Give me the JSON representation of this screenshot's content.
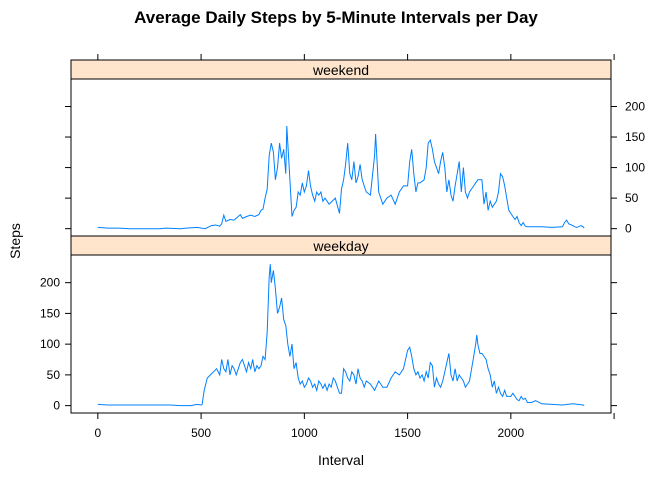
{
  "chart_data": {
    "type": "line",
    "title": "Average Daily Steps by 5-Minute Intervals per Day",
    "xlabel": "Interval",
    "ylabel": "Steps",
    "xlim": [
      -130,
      2485
    ],
    "ylim": [
      -12,
      245
    ],
    "xticks": [
      0,
      500,
      1000,
      1500,
      2000
    ],
    "yticks": [
      0,
      50,
      100,
      150,
      200
    ],
    "grid": false,
    "legend": "none",
    "colors": {
      "line": "#0080ff",
      "strip": "#ffe5cc",
      "frame": "#000000"
    },
    "panels": [
      {
        "name": "weekend",
        "points": [
          [
            0,
            2
          ],
          [
            50,
            1
          ],
          [
            100,
            1
          ],
          [
            150,
            0
          ],
          [
            200,
            0
          ],
          [
            300,
            0
          ],
          [
            330,
            1
          ],
          [
            400,
            0
          ],
          [
            430,
            1
          ],
          [
            480,
            2
          ],
          [
            520,
            0
          ],
          [
            550,
            5
          ],
          [
            570,
            6
          ],
          [
            590,
            4
          ],
          [
            600,
            8
          ],
          [
            610,
            22
          ],
          [
            620,
            12
          ],
          [
            640,
            15
          ],
          [
            660,
            14
          ],
          [
            690,
            23
          ],
          [
            700,
            17
          ],
          [
            720,
            20
          ],
          [
            740,
            22
          ],
          [
            760,
            20
          ],
          [
            780,
            23
          ],
          [
            790,
            30
          ],
          [
            800,
            32
          ],
          [
            810,
            50
          ],
          [
            820,
            65
          ],
          [
            830,
            120
          ],
          [
            840,
            140
          ],
          [
            850,
            125
          ],
          [
            860,
            80
          ],
          [
            870,
            100
          ],
          [
            880,
            140
          ],
          [
            890,
            115
          ],
          [
            900,
            130
          ],
          [
            910,
            90
          ],
          [
            915,
            168
          ],
          [
            920,
            140
          ],
          [
            930,
            80
          ],
          [
            940,
            20
          ],
          [
            950,
            30
          ],
          [
            960,
            35
          ],
          [
            970,
            60
          ],
          [
            980,
            55
          ],
          [
            990,
            75
          ],
          [
            1000,
            60
          ],
          [
            1010,
            70
          ],
          [
            1020,
            95
          ],
          [
            1030,
            70
          ],
          [
            1040,
            55
          ],
          [
            1050,
            45
          ],
          [
            1060,
            60
          ],
          [
            1070,
            55
          ],
          [
            1080,
            60
          ],
          [
            1090,
            45
          ],
          [
            1100,
            50
          ],
          [
            1120,
            40
          ],
          [
            1150,
            50
          ],
          [
            1170,
            25
          ],
          [
            1180,
            65
          ],
          [
            1190,
            80
          ],
          [
            1200,
            105
          ],
          [
            1210,
            140
          ],
          [
            1220,
            90
          ],
          [
            1230,
            80
          ],
          [
            1240,
            110
          ],
          [
            1250,
            75
          ],
          [
            1260,
            85
          ],
          [
            1270,
            105
          ],
          [
            1280,
            80
          ],
          [
            1290,
            70
          ],
          [
            1300,
            60
          ],
          [
            1320,
            55
          ],
          [
            1340,
            120
          ],
          [
            1345,
            155
          ],
          [
            1360,
            60
          ],
          [
            1380,
            40
          ],
          [
            1400,
            50
          ],
          [
            1420,
            55
          ],
          [
            1440,
            40
          ],
          [
            1460,
            60
          ],
          [
            1480,
            70
          ],
          [
            1500,
            70
          ],
          [
            1510,
            110
          ],
          [
            1520,
            130
          ],
          [
            1530,
            90
          ],
          [
            1540,
            60
          ],
          [
            1550,
            75
          ],
          [
            1560,
            75
          ],
          [
            1580,
            80
          ],
          [
            1590,
            100
          ],
          [
            1600,
            140
          ],
          [
            1610,
            145
          ],
          [
            1620,
            130
          ],
          [
            1630,
            110
          ],
          [
            1640,
            100
          ],
          [
            1650,
            90
          ],
          [
            1660,
            110
          ],
          [
            1670,
            125
          ],
          [
            1680,
            100
          ],
          [
            1690,
            60
          ],
          [
            1700,
            80
          ],
          [
            1710,
            55
          ],
          [
            1720,
            45
          ],
          [
            1730,
            70
          ],
          [
            1740,
            90
          ],
          [
            1750,
            110
          ],
          [
            1760,
            60
          ],
          [
            1770,
            100
          ],
          [
            1780,
            60
          ],
          [
            1790,
            50
          ],
          [
            1800,
            60
          ],
          [
            1820,
            70
          ],
          [
            1840,
            80
          ],
          [
            1860,
            80
          ],
          [
            1870,
            40
          ],
          [
            1880,
            60
          ],
          [
            1890,
            30
          ],
          [
            1900,
            45
          ],
          [
            1910,
            35
          ],
          [
            1920,
            40
          ],
          [
            1930,
            45
          ],
          [
            1940,
            60
          ],
          [
            1950,
            90
          ],
          [
            1960,
            85
          ],
          [
            1970,
            70
          ],
          [
            1980,
            50
          ],
          [
            1990,
            30
          ],
          [
            2000,
            25
          ],
          [
            2010,
            20
          ],
          [
            2020,
            15
          ],
          [
            2030,
            20
          ],
          [
            2040,
            10
          ],
          [
            2050,
            5
          ],
          [
            2060,
            10
          ],
          [
            2070,
            4
          ],
          [
            2080,
            3
          ],
          [
            2100,
            3
          ],
          [
            2150,
            3
          ],
          [
            2200,
            2
          ],
          [
            2250,
            3
          ],
          [
            2260,
            10
          ],
          [
            2270,
            14
          ],
          [
            2280,
            8
          ],
          [
            2300,
            5
          ],
          [
            2310,
            3
          ],
          [
            2320,
            2
          ],
          [
            2340,
            5
          ],
          [
            2350,
            3
          ],
          [
            2355,
            1
          ]
        ]
      },
      {
        "name": "weekday",
        "points": [
          [
            0,
            2
          ],
          [
            50,
            1
          ],
          [
            100,
            1
          ],
          [
            150,
            1
          ],
          [
            200,
            1
          ],
          [
            300,
            1
          ],
          [
            350,
            1
          ],
          [
            400,
            0
          ],
          [
            450,
            0
          ],
          [
            480,
            2
          ],
          [
            500,
            1
          ],
          [
            505,
            2
          ],
          [
            515,
            25
          ],
          [
            530,
            45
          ],
          [
            545,
            50
          ],
          [
            560,
            55
          ],
          [
            575,
            60
          ],
          [
            590,
            50
          ],
          [
            600,
            75
          ],
          [
            610,
            60
          ],
          [
            620,
            55
          ],
          [
            630,
            75
          ],
          [
            640,
            50
          ],
          [
            650,
            65
          ],
          [
            660,
            60
          ],
          [
            670,
            50
          ],
          [
            680,
            60
          ],
          [
            690,
            70
          ],
          [
            700,
            75
          ],
          [
            710,
            65
          ],
          [
            720,
            55
          ],
          [
            730,
            70
          ],
          [
            740,
            60
          ],
          [
            750,
            75
          ],
          [
            760,
            55
          ],
          [
            770,
            65
          ],
          [
            780,
            60
          ],
          [
            790,
            65
          ],
          [
            800,
            80
          ],
          [
            810,
            75
          ],
          [
            820,
            120
          ],
          [
            830,
            210
          ],
          [
            835,
            230
          ],
          [
            840,
            200
          ],
          [
            850,
            220
          ],
          [
            860,
            190
          ],
          [
            870,
            150
          ],
          [
            880,
            160
          ],
          [
            890,
            175
          ],
          [
            900,
            140
          ],
          [
            910,
            130
          ],
          [
            920,
            100
          ],
          [
            930,
            80
          ],
          [
            940,
            100
          ],
          [
            950,
            60
          ],
          [
            960,
            70
          ],
          [
            970,
            45
          ],
          [
            980,
            35
          ],
          [
            990,
            40
          ],
          [
            1000,
            30
          ],
          [
            1010,
            35
          ],
          [
            1020,
            45
          ],
          [
            1030,
            40
          ],
          [
            1040,
            30
          ],
          [
            1050,
            35
          ],
          [
            1060,
            25
          ],
          [
            1070,
            40
          ],
          [
            1080,
            35
          ],
          [
            1090,
            28
          ],
          [
            1100,
            35
          ],
          [
            1110,
            25
          ],
          [
            1120,
            35
          ],
          [
            1130,
            30
          ],
          [
            1140,
            45
          ],
          [
            1150,
            40
          ],
          [
            1160,
            30
          ],
          [
            1170,
            20
          ],
          [
            1180,
            20
          ],
          [
            1190,
            60
          ],
          [
            1200,
            55
          ],
          [
            1210,
            45
          ],
          [
            1220,
            40
          ],
          [
            1230,
            55
          ],
          [
            1240,
            50
          ],
          [
            1250,
            35
          ],
          [
            1260,
            60
          ],
          [
            1270,
            45
          ],
          [
            1280,
            40
          ],
          [
            1290,
            30
          ],
          [
            1300,
            40
          ],
          [
            1320,
            35
          ],
          [
            1340,
            25
          ],
          [
            1360,
            40
          ],
          [
            1380,
            30
          ],
          [
            1400,
            30
          ],
          [
            1420,
            45
          ],
          [
            1440,
            55
          ],
          [
            1460,
            50
          ],
          [
            1480,
            60
          ],
          [
            1500,
            90
          ],
          [
            1510,
            95
          ],
          [
            1520,
            80
          ],
          [
            1530,
            60
          ],
          [
            1540,
            50
          ],
          [
            1550,
            55
          ],
          [
            1560,
            45
          ],
          [
            1570,
            50
          ],
          [
            1580,
            40
          ],
          [
            1590,
            55
          ],
          [
            1600,
            45
          ],
          [
            1610,
            70
          ],
          [
            1620,
            65
          ],
          [
            1630,
            30
          ],
          [
            1640,
            45
          ],
          [
            1650,
            35
          ],
          [
            1660,
            30
          ],
          [
            1670,
            40
          ],
          [
            1680,
            55
          ],
          [
            1690,
            70
          ],
          [
            1700,
            85
          ],
          [
            1710,
            50
          ],
          [
            1720,
            40
          ],
          [
            1730,
            60
          ],
          [
            1740,
            40
          ],
          [
            1750,
            50
          ],
          [
            1760,
            45
          ],
          [
            1770,
            40
          ],
          [
            1780,
            30
          ],
          [
            1790,
            35
          ],
          [
            1800,
            40
          ],
          [
            1810,
            60
          ],
          [
            1820,
            80
          ],
          [
            1830,
            100
          ],
          [
            1835,
            115
          ],
          [
            1840,
            100
          ],
          [
            1850,
            85
          ],
          [
            1860,
            85
          ],
          [
            1870,
            80
          ],
          [
            1880,
            75
          ],
          [
            1890,
            60
          ],
          [
            1900,
            50
          ],
          [
            1910,
            30
          ],
          [
            1920,
            40
          ],
          [
            1930,
            20
          ],
          [
            1940,
            30
          ],
          [
            1950,
            20
          ],
          [
            1960,
            15
          ],
          [
            1970,
            25
          ],
          [
            1980,
            15
          ],
          [
            2000,
            15
          ],
          [
            2010,
            20
          ],
          [
            2020,
            15
          ],
          [
            2030,
            10
          ],
          [
            2040,
            8
          ],
          [
            2050,
            15
          ],
          [
            2060,
            10
          ],
          [
            2070,
            12
          ],
          [
            2080,
            5
          ],
          [
            2100,
            5
          ],
          [
            2120,
            8
          ],
          [
            2150,
            3
          ],
          [
            2200,
            2
          ],
          [
            2250,
            1
          ],
          [
            2300,
            3
          ],
          [
            2350,
            1
          ],
          [
            2355,
            0
          ]
        ]
      }
    ]
  }
}
